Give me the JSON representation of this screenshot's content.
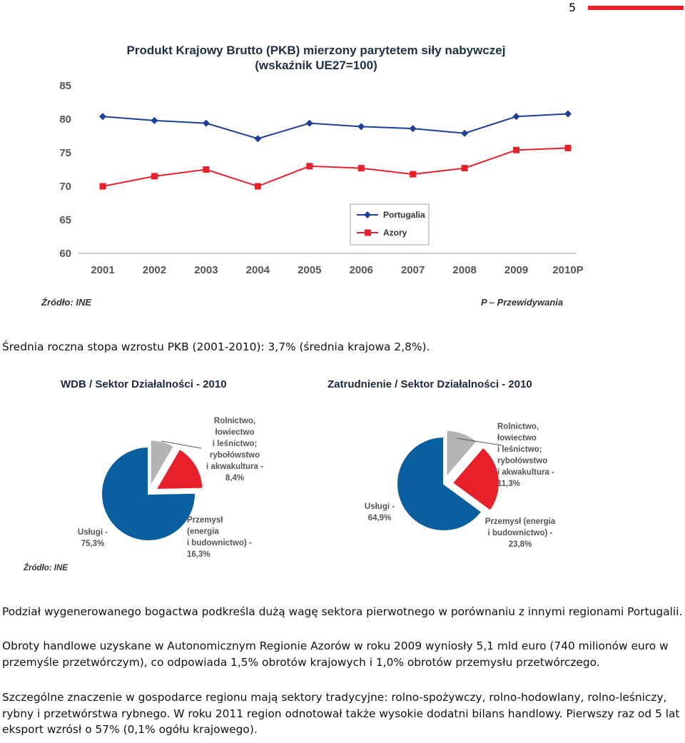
{
  "page_number": "5",
  "accent_color": "#e8202a",
  "line_chart": {
    "title_line1": "Produkt Krajowy Brutto (PKB) mierzony parytetem siły nabywczej",
    "title_line2": "(wskaźnik UE27=100)",
    "source": "Źródło: INE",
    "note": "P – Przewidywania",
    "chart_data": {
      "type": "line",
      "categories": [
        "2001",
        "2002",
        "2003",
        "2004",
        "2005",
        "2006",
        "2007",
        "2008",
        "2009",
        "2010P"
      ],
      "ylim": [
        60,
        85
      ],
      "yticks": [
        "85",
        "80",
        "75",
        "70",
        "65",
        "60"
      ],
      "legend_position": "right",
      "series": [
        {
          "name": "Portugalia",
          "color": "#1f3f96",
          "values": [
            80.4,
            79.8,
            79.4,
            77.1,
            79.4,
            78.9,
            78.6,
            77.9,
            80.4,
            80.8
          ]
        },
        {
          "name": "Azory",
          "color": "#e8202a",
          "values": [
            70.0,
            71.5,
            72.5,
            70.0,
            73.0,
            72.7,
            71.8,
            72.7,
            75.4,
            75.7
          ]
        }
      ]
    }
  },
  "paragraph1": "Średnia roczna stopa wzrostu PKB (2001-2010): 3,7% (średnia krajowa 2,8%).",
  "pies": {
    "source": "Źródło: INE",
    "chart_data": [
      {
        "type": "pie",
        "title": "WDB / Sektor Działalności - 2010",
        "slices": [
          {
            "label": "Usługi - 75,3%",
            "value": 75.3,
            "color": "#0a5fa0"
          },
          {
            "label": "Rolnictwo, łowiectwo i leśnictwo; rybołówstwo i akwakultura - 8,4%",
            "value": 8.4,
            "color": "#b4b4b4"
          },
          {
            "label": "Przemysł (energia i budownictwo) - 16,3%",
            "value": 16.3,
            "color": "#e8202a"
          }
        ]
      },
      {
        "type": "pie",
        "title": "Zatrudnienie / Sektor Działalności - 2010",
        "slices": [
          {
            "label": "Usługi - 64,9%",
            "value": 64.9,
            "color": "#0a5fa0"
          },
          {
            "label": "Rolnictwo, łowiectwo i leśnictwo; rybołówstwo i akwakultura - 11,3%",
            "value": 11.3,
            "color": "#b4b4b4"
          },
          {
            "label": "Przemysł (energia i budownictwo) - 23,8%",
            "value": 23.8,
            "color": "#e8202a"
          }
        ]
      }
    ],
    "labels": {
      "p1_agri": "Rolnictwo,\nłowiectwo\ni leśnictwo;\nrybołówstwo\ni akwakultura -\n8,4%",
      "p1_services": "Usługi -\n75,3%",
      "p1_industry": "Przemysł\n(energia\ni budownictwo) -\n16,3%",
      "p2_agri": "Rolnictwo,\nłowiectwo\ni leśnictwo;\nrybołówstwo\ni akwakultura -\n11,3%",
      "p2_services": "Usługi -\n64,9%",
      "p2_industry": "Przemysł (energia\ni budownictwo) -\n23,8%"
    }
  },
  "paragraph2": "Podział wygenerowanego bogactwa podkreśla dużą wagę sektora pierwotnego w porównaniu z innymi regionami Portugalii.",
  "paragraph3": "Obroty handlowe uzyskane w Autonomicznym Regionie Azorów w roku 2009 wyniosły 5,1 mld euro (740 milionów euro w przemyśle przetwórczym), co odpowiada 1,5% obrotów krajowych i 1,0% obrotów przemysłu przetwórczego.",
  "paragraph4": "Szczególne znaczenie w gospodarce regionu mają sektory tradycyjne: rolno-spożywczy, rolno-hodowlany, rolno-leśniczy, rybny i przetwórstwa rybnego. W roku 2011 region odnotował także wysokie dodatni bilans handlowy. Pierwszy raz od 5 lat eksport wzrósł o 57% (0,1% ogółu krajowego)."
}
